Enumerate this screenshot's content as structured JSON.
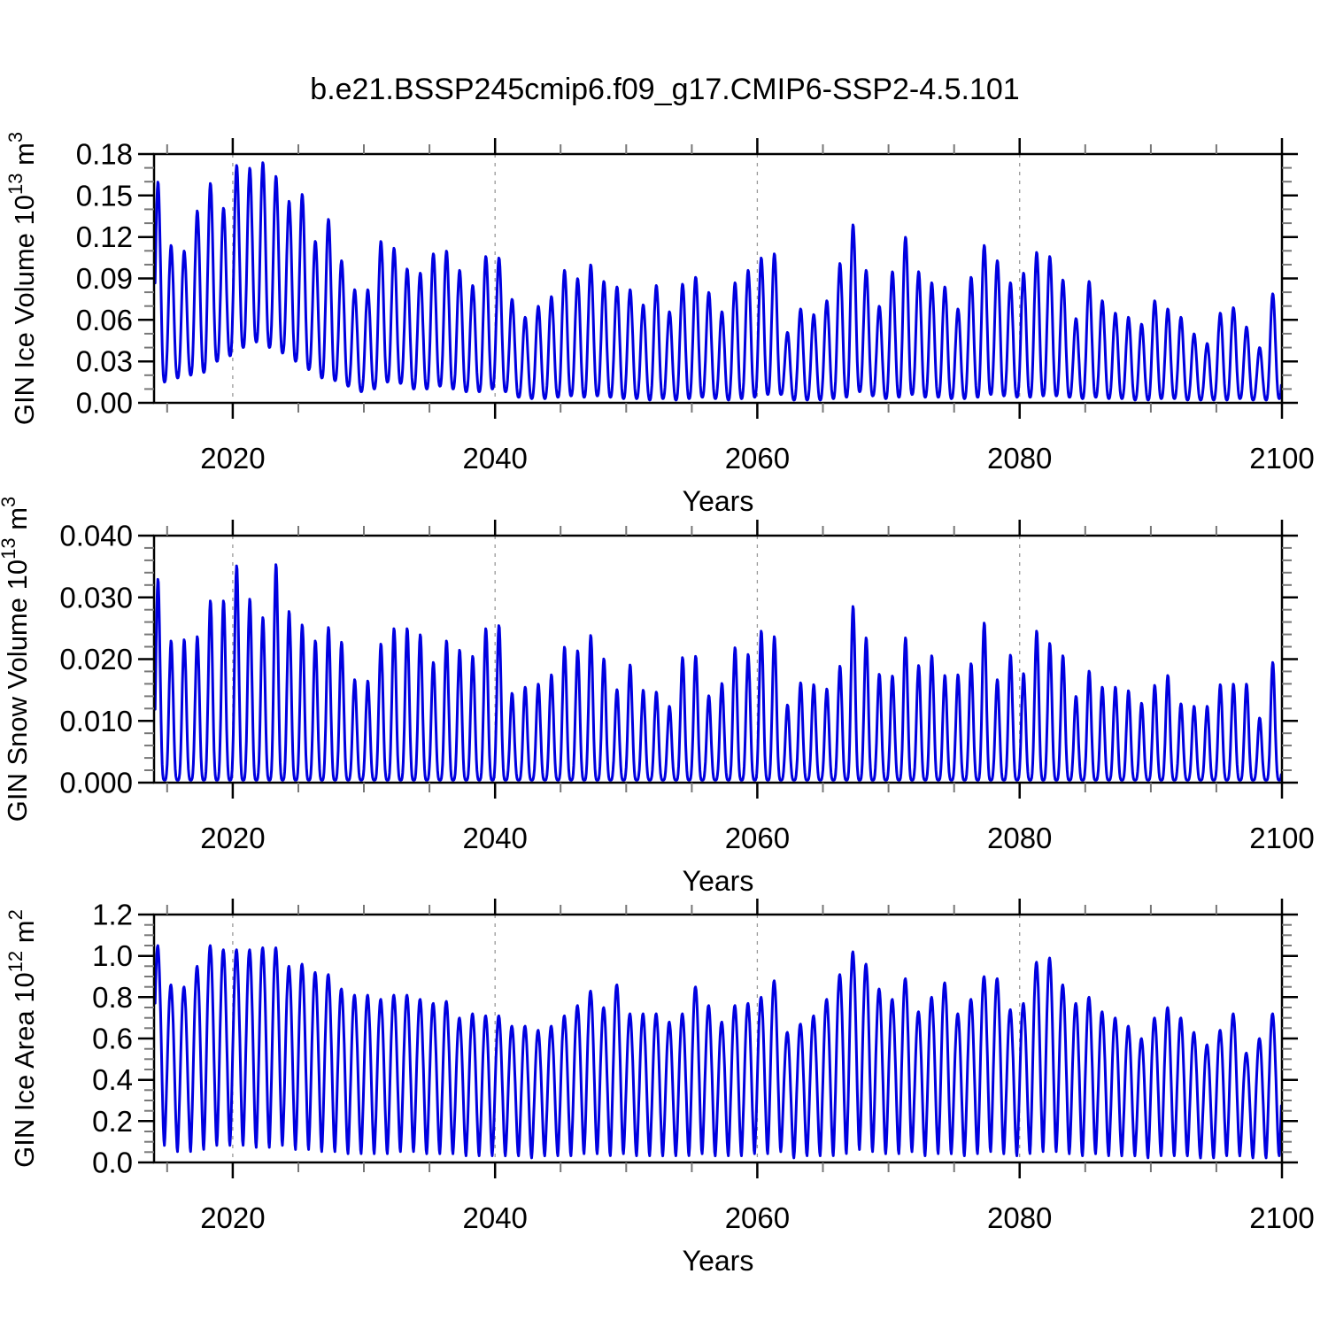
{
  "title": "b.e21.BSSP245cmip6.f09_g17.CMIP6-SSP2-4.5.101",
  "figure": {
    "background": "#ffffff",
    "line_color": "#0000E0",
    "frame_color": "#000000",
    "major_tick_color": "#000000",
    "minor_tick_color": "#777777",
    "grid_color": "#999999",
    "text_color": "#000000"
  },
  "chart_data": [
    {
      "type": "line",
      "name": "GIN Ice Volume",
      "ylabel_segments": [
        [
          "GIN Ice Volume 10",
          false
        ],
        [
          "13",
          true
        ],
        [
          " m",
          false
        ],
        [
          "3",
          true
        ]
      ],
      "xlabel": "Years",
      "xlim": [
        2014.0,
        2100.0
      ],
      "ylim": [
        0.0,
        0.18
      ],
      "yticks": [
        {
          "label": "0.00",
          "v": 0.0
        },
        {
          "label": "0.03",
          "v": 0.03
        },
        {
          "label": "0.06",
          "v": 0.06
        },
        {
          "label": "0.09",
          "v": 0.09
        },
        {
          "label": "0.12",
          "v": 0.12
        },
        {
          "label": "0.15",
          "v": 0.15
        },
        {
          "label": "0.18",
          "v": 0.18
        }
      ],
      "ytick_minor_step": 0.01,
      "xticks": [
        {
          "label": "2020",
          "v": 2020
        },
        {
          "label": "2040",
          "v": 2040
        },
        {
          "label": "2060",
          "v": 2060
        },
        {
          "label": "2080",
          "v": 2080
        },
        {
          "label": "2100",
          "v": 2100
        }
      ],
      "xtick_minor_step": 5,
      "grid_x": [
        2020,
        2040,
        2060,
        2080
      ],
      "grid_on": true,
      "legend": "none",
      "start_year": 2014,
      "seasonal": {
        "peak_phase": 0.3,
        "sharpness": 1.35,
        "samples_per_year": 24
      },
      "annual_peaks": [
        0.16,
        0.114,
        0.11,
        0.139,
        0.159,
        0.141,
        0.172,
        0.17,
        0.174,
        0.164,
        0.146,
        0.151,
        0.117,
        0.133,
        0.103,
        0.082,
        0.082,
        0.117,
        0.112,
        0.097,
        0.094,
        0.108,
        0.11,
        0.096,
        0.085,
        0.106,
        0.105,
        0.075,
        0.062,
        0.07,
        0.077,
        0.096,
        0.09,
        0.1,
        0.088,
        0.084,
        0.082,
        0.071,
        0.085,
        0.066,
        0.086,
        0.091,
        0.08,
        0.066,
        0.087,
        0.096,
        0.105,
        0.108,
        0.051,
        0.068,
        0.064,
        0.074,
        0.101,
        0.129,
        0.096,
        0.07,
        0.095,
        0.12,
        0.095,
        0.087,
        0.084,
        0.068,
        0.091,
        0.114,
        0.103,
        0.087,
        0.094,
        0.109,
        0.106,
        0.089,
        0.061,
        0.088,
        0.074,
        0.065,
        0.062,
        0.057,
        0.074,
        0.068,
        0.062,
        0.05,
        0.043,
        0.065,
        0.069,
        0.055,
        0.04,
        0.079
      ],
      "annual_troughs": [
        0.015,
        0.018,
        0.02,
        0.022,
        0.03,
        0.034,
        0.04,
        0.044,
        0.04,
        0.036,
        0.03,
        0.024,
        0.018,
        0.016,
        0.012,
        0.008,
        0.01,
        0.015,
        0.014,
        0.01,
        0.01,
        0.012,
        0.01,
        0.008,
        0.008,
        0.01,
        0.008,
        0.004,
        0.003,
        0.003,
        0.004,
        0.005,
        0.004,
        0.005,
        0.004,
        0.003,
        0.003,
        0.002,
        0.003,
        0.002,
        0.003,
        0.004,
        0.003,
        0.002,
        0.003,
        0.004,
        0.006,
        0.006,
        0.002,
        0.002,
        0.002,
        0.003,
        0.004,
        0.008,
        0.005,
        0.003,
        0.004,
        0.006,
        0.004,
        0.004,
        0.003,
        0.003,
        0.004,
        0.006,
        0.005,
        0.004,
        0.004,
        0.005,
        0.005,
        0.004,
        0.003,
        0.004,
        0.003,
        0.003,
        0.002,
        0.002,
        0.003,
        0.003,
        0.002,
        0.002,
        0.002,
        0.002,
        0.003,
        0.002,
        0.002,
        0.003
      ]
    },
    {
      "type": "line",
      "name": "GIN Snow Volume",
      "ylabel_segments": [
        [
          "GIN Snow Volume 10",
          false
        ],
        [
          "13",
          true
        ],
        [
          " m",
          false
        ],
        [
          "3",
          true
        ]
      ],
      "xlabel": "Years",
      "xlim": [
        2014.0,
        2100.0
      ],
      "ylim": [
        0.0,
        0.04
      ],
      "yticks": [
        {
          "label": "0.000",
          "v": 0.0
        },
        {
          "label": "0.010",
          "v": 0.01
        },
        {
          "label": "0.020",
          "v": 0.02
        },
        {
          "label": "0.030",
          "v": 0.03
        },
        {
          "label": "0.040",
          "v": 0.04
        }
      ],
      "ytick_minor_step": 0.002,
      "xticks": [
        {
          "label": "2020",
          "v": 2020
        },
        {
          "label": "2040",
          "v": 2040
        },
        {
          "label": "2060",
          "v": 2060
        },
        {
          "label": "2080",
          "v": 2080
        },
        {
          "label": "2100",
          "v": 2100
        }
      ],
      "xtick_minor_step": 5,
      "grid_x": [
        2020,
        2040,
        2060,
        2080
      ],
      "grid_on": true,
      "legend": "none",
      "start_year": 2014,
      "seasonal": {
        "peak_phase": 0.3,
        "sharpness": 2.0,
        "samples_per_year": 24
      },
      "annual_peaks": [
        0.033,
        0.023,
        0.0232,
        0.0237,
        0.0295,
        0.0295,
        0.0352,
        0.0298,
        0.0268,
        0.0354,
        0.0278,
        0.0256,
        0.023,
        0.0252,
        0.0228,
        0.0167,
        0.0165,
        0.0225,
        0.025,
        0.025,
        0.024,
        0.0195,
        0.023,
        0.0215,
        0.0205,
        0.025,
        0.0255,
        0.0145,
        0.0155,
        0.016,
        0.0175,
        0.022,
        0.0214,
        0.0239,
        0.0201,
        0.0151,
        0.0191,
        0.015,
        0.0147,
        0.0124,
        0.0203,
        0.0205,
        0.0141,
        0.0161,
        0.0219,
        0.0208,
        0.0246,
        0.0237,
        0.0126,
        0.0162,
        0.0159,
        0.0152,
        0.0189,
        0.0286,
        0.0235,
        0.0176,
        0.0173,
        0.0235,
        0.019,
        0.0206,
        0.0174,
        0.0175,
        0.0193,
        0.0259,
        0.0167,
        0.0207,
        0.0177,
        0.0246,
        0.0226,
        0.0206,
        0.014,
        0.0181,
        0.0155,
        0.0155,
        0.0149,
        0.0129,
        0.0158,
        0.0174,
        0.0128,
        0.0124,
        0.0124,
        0.0159,
        0.016,
        0.016,
        0.0105,
        0.0195
      ],
      "annual_troughs": 0.0004
    },
    {
      "type": "line",
      "name": "GIN Ice Area",
      "ylabel_segments": [
        [
          "GIN Ice Area 10",
          false
        ],
        [
          "12",
          true
        ],
        [
          " m",
          false
        ],
        [
          "2",
          true
        ]
      ],
      "xlabel": "Years",
      "xlim": [
        2014.0,
        2100.0
      ],
      "ylim": [
        0.0,
        1.2
      ],
      "yticks": [
        {
          "label": "0.0",
          "v": 0.0
        },
        {
          "label": "0.2",
          "v": 0.2
        },
        {
          "label": "0.4",
          "v": 0.4
        },
        {
          "label": "0.6",
          "v": 0.6
        },
        {
          "label": "0.8",
          "v": 0.8
        },
        {
          "label": "1.0",
          "v": 1.0
        },
        {
          "label": "1.2",
          "v": 1.2
        }
      ],
      "ytick_minor_step": 0.05,
      "xticks": [
        {
          "label": "2020",
          "v": 2020
        },
        {
          "label": "2040",
          "v": 2040
        },
        {
          "label": "2060",
          "v": 2060
        },
        {
          "label": "2080",
          "v": 2080
        },
        {
          "label": "2100",
          "v": 2100
        }
      ],
      "xtick_minor_step": 5,
      "grid_x": [
        2020,
        2040,
        2060,
        2080
      ],
      "grid_on": true,
      "legend": "none",
      "start_year": 2014,
      "seasonal": {
        "peak_phase": 0.28,
        "sharpness": 0.8,
        "samples_per_year": 24
      },
      "annual_peaks": [
        1.05,
        0.86,
        0.85,
        0.95,
        1.05,
        1.03,
        1.03,
        1.03,
        1.04,
        1.04,
        0.95,
        0.96,
        0.92,
        0.91,
        0.84,
        0.81,
        0.81,
        0.79,
        0.81,
        0.81,
        0.79,
        0.77,
        0.78,
        0.7,
        0.72,
        0.71,
        0.71,
        0.66,
        0.66,
        0.64,
        0.66,
        0.71,
        0.76,
        0.83,
        0.75,
        0.86,
        0.72,
        0.72,
        0.72,
        0.68,
        0.72,
        0.85,
        0.76,
        0.68,
        0.76,
        0.77,
        0.8,
        0.88,
        0.63,
        0.67,
        0.71,
        0.79,
        0.91,
        1.02,
        0.96,
        0.84,
        0.79,
        0.89,
        0.73,
        0.8,
        0.87,
        0.72,
        0.79,
        0.9,
        0.89,
        0.74,
        0.77,
        0.97,
        0.99,
        0.86,
        0.77,
        0.8,
        0.73,
        0.7,
        0.66,
        0.6,
        0.7,
        0.75,
        0.7,
        0.63,
        0.57,
        0.64,
        0.72,
        0.53,
        0.6,
        0.72
      ],
      "annual_troughs": [
        0.08,
        0.05,
        0.05,
        0.06,
        0.08,
        0.08,
        0.08,
        0.07,
        0.07,
        0.08,
        0.06,
        0.06,
        0.05,
        0.05,
        0.04,
        0.04,
        0.04,
        0.04,
        0.05,
        0.05,
        0.04,
        0.04,
        0.04,
        0.03,
        0.03,
        0.03,
        0.03,
        0.03,
        0.02,
        0.03,
        0.03,
        0.03,
        0.04,
        0.04,
        0.03,
        0.04,
        0.03,
        0.03,
        0.03,
        0.03,
        0.03,
        0.04,
        0.03,
        0.03,
        0.03,
        0.04,
        0.04,
        0.05,
        0.02,
        0.03,
        0.03,
        0.03,
        0.04,
        0.06,
        0.05,
        0.04,
        0.04,
        0.05,
        0.03,
        0.04,
        0.04,
        0.03,
        0.04,
        0.05,
        0.04,
        0.03,
        0.04,
        0.05,
        0.05,
        0.04,
        0.03,
        0.04,
        0.03,
        0.03,
        0.03,
        0.02,
        0.03,
        0.03,
        0.03,
        0.02,
        0.02,
        0.03,
        0.03,
        0.02,
        0.02,
        0.03
      ]
    }
  ]
}
